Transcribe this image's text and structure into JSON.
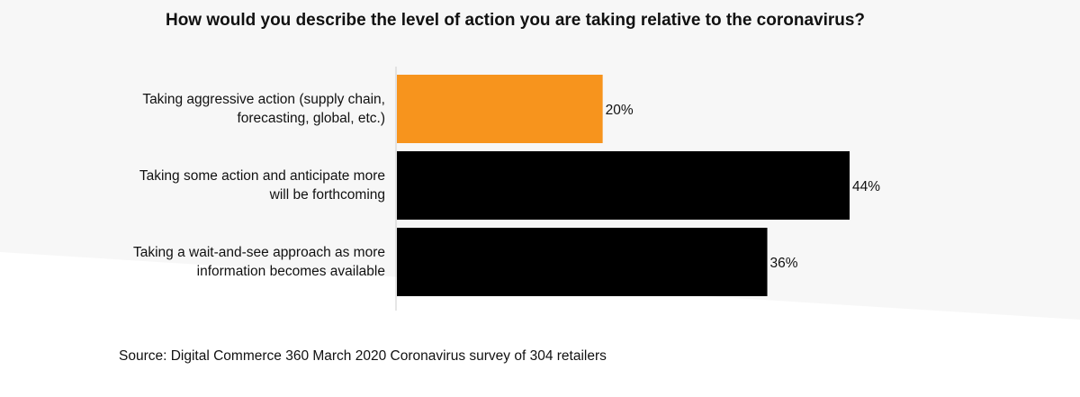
{
  "chart_data": {
    "type": "bar",
    "orientation": "horizontal",
    "title": "How would you describe the level of action you are taking relative to the coronavirus?",
    "categories": [
      [
        "Taking aggressive action (supply chain,",
        "forecasting, global, etc.)"
      ],
      [
        "Taking some action and anticipate more",
        "will be forthcoming"
      ],
      [
        "Taking a wait-and-see approach as more",
        "information becomes available"
      ]
    ],
    "values": [
      20,
      44,
      36
    ],
    "value_labels": [
      "20%",
      "44%",
      "36%"
    ],
    "colors": [
      "#f7941d",
      "#000000",
      "#000000"
    ],
    "xlim": [
      0,
      44
    ],
    "xlabel": "",
    "ylabel": "",
    "grid": false
  },
  "source": "Source: Digital Commerce 360  March 2020 Coronavirus survey  of 304 retailers",
  "colors": {
    "background_top": "#f7f7f7",
    "background_bottom": "#ffffff",
    "axis": "#cccccc"
  }
}
